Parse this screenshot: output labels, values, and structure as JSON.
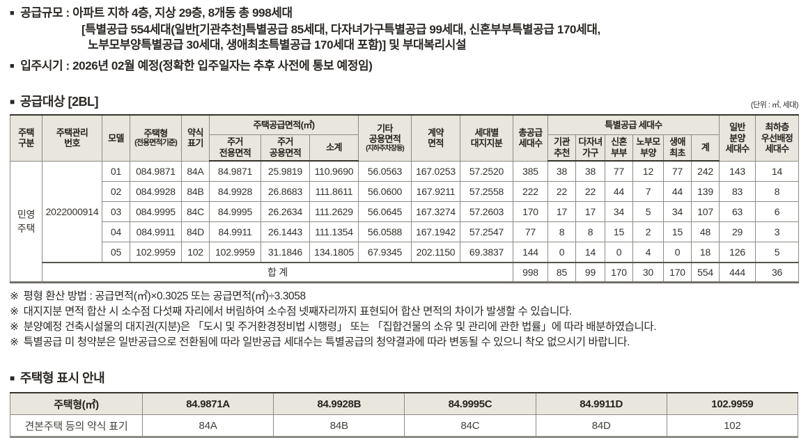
{
  "icons": {
    "square_bullet": "■"
  },
  "top": {
    "line1": "공급규모 : 아파트 지하 4층, 지상 29층, 8개동 총 998세대",
    "line2": "[특별공급 554세대(일반[기관추천]특별공급 85세대, 다자녀가구특별공급 99세대, 신혼부부특별공급 170세대,",
    "line3": "노부모부양특별공급 30세대, 생애최초특별공급 170세대 포함)] 및 부대복리시설",
    "line4": "입주시기 : 2026년 02월 예정(정확한 입주일자는 추후 사전에 통보 예정임)"
  },
  "supply": {
    "heading": "공급대상 [2BL]",
    "unit_note": "(단위 : ㎡, 세대)",
    "header": {
      "housing_class": "주택\n구분",
      "mgmt_no": "주택관리\n번호",
      "model": "모델",
      "type_main": "주택형",
      "type_sub": "(전용면적기준)",
      "short_label": "약식\n표기",
      "supply_area_group": "주택공급면적(㎡)",
      "private_area": "주거\n전용면적",
      "common_area": "주거\n공용면적",
      "subtotal": "소계",
      "etc_main": "기타\n공용면적",
      "etc_sub": "(지하주차장등)",
      "contract_area": "계약\n면적",
      "land_share": "세대별\n대지지분",
      "total_units": "총공급\n세대수",
      "special_group": "특별공급 세대수",
      "special_cols": [
        "기관\n추천",
        "다자녀\n가구",
        "신혼\n부부",
        "노부모\n부양",
        "생애\n최초",
        "계"
      ],
      "general_units": "일반\n분양\n세대수",
      "lowest_floor": "최하층\n우선배정\n세대수"
    },
    "group": {
      "housing_class": "민영\n주택",
      "mgmt_no": "2022000914"
    },
    "rows": [
      {
        "model": "01",
        "type": "084.9871",
        "short": "84A",
        "private": "84.9871",
        "common": "25.9819",
        "subtotal": "110.9690",
        "etc": "56.0563",
        "contract": "167.0253",
        "land": "57.2520",
        "total": "385",
        "special": [
          "38",
          "38",
          "77",
          "12",
          "77",
          "242"
        ],
        "general": "143",
        "lowest": "14"
      },
      {
        "model": "02",
        "type": "084.9928",
        "short": "84B",
        "private": "84.9928",
        "common": "26.8683",
        "subtotal": "111.8611",
        "etc": "56.0600",
        "contract": "167.9211",
        "land": "57.2558",
        "total": "222",
        "special": [
          "22",
          "22",
          "44",
          "7",
          "44",
          "139"
        ],
        "general": "83",
        "lowest": "8"
      },
      {
        "model": "03",
        "type": "084.9995",
        "short": "84C",
        "private": "84.9995",
        "common": "26.2634",
        "subtotal": "111.2629",
        "etc": "56.0645",
        "contract": "167.3274",
        "land": "57.2603",
        "total": "170",
        "special": [
          "17",
          "17",
          "34",
          "5",
          "34",
          "107"
        ],
        "general": "63",
        "lowest": "6"
      },
      {
        "model": "04",
        "type": "084.9911",
        "short": "84D",
        "private": "84.9911",
        "common": "26.1443",
        "subtotal": "111.1354",
        "etc": "56.0588",
        "contract": "167.1942",
        "land": "57.2547",
        "total": "77",
        "special": [
          "8",
          "8",
          "15",
          "2",
          "15",
          "48"
        ],
        "general": "29",
        "lowest": "3"
      },
      {
        "model": "05",
        "type": "102.9959",
        "short": "102",
        "private": "102.9959",
        "common": "31.1846",
        "subtotal": "134.1805",
        "etc": "67.9345",
        "contract": "202.1150",
        "land": "69.3837",
        "total": "144",
        "special": [
          "0",
          "14",
          "0",
          "4",
          "0",
          "18"
        ],
        "general": "126",
        "lowest": "5"
      }
    ],
    "total_row": {
      "label": "합 계",
      "total": "998",
      "special": [
        "85",
        "99",
        "170",
        "30",
        "170",
        "554"
      ],
      "general": "444",
      "lowest": "36"
    }
  },
  "notes": {
    "marker": "※",
    "items": [
      "평형 환산 방법 : 공급면적(㎡)×0.3025 또는 공급면적(㎡)÷3.3058",
      "대지지분 면적 합산 시 소수점 다섯째 자리에서 버림하여 소수점 넷째자리까지 표현되어 합산 면적의 차이가 발생할 수 있습니다.",
      "분양예정 건축시설물의 대지권(지분)은 「도시 및 주거환경정비법 시행령」 또는 「집합건물의 소유 및 관리에 관한 법률」에 따라 배분하였습니다.",
      "특별공급 미 청약분은 일반공급으로 전환됨에 따라 일반공급 세대수는 특별공급의 청약결과에 따라 변동될 수 있으니 착오 없으시기 바랍니다."
    ]
  },
  "type_table": {
    "heading": "주택형 표시 안내",
    "header_cells": [
      "주택형(㎡)",
      "84.9871A",
      "84.9928B",
      "84.9995C",
      "84.9911D",
      "102.9959"
    ],
    "value_cells": [
      "견본주택 등의 약식 표기",
      "84A",
      "84B",
      "84C",
      "84D",
      "102"
    ]
  }
}
